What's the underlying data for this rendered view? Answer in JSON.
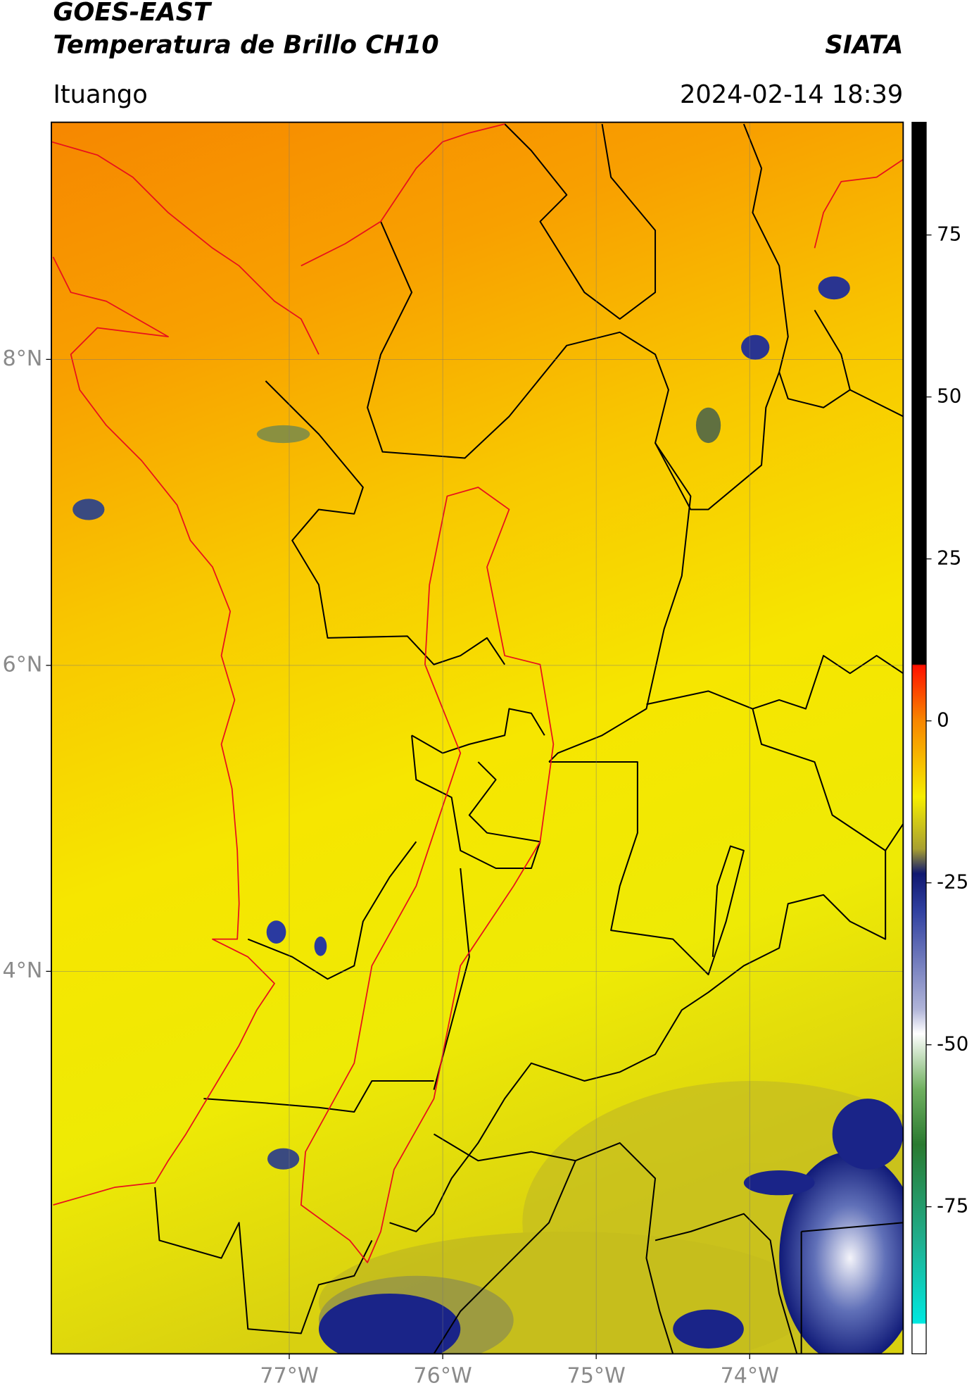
{
  "header": {
    "title": "GOES-EAST",
    "subtitle": "Temperatura de Brillo CH10",
    "credit": "SIATA",
    "location": "Ituango",
    "timestamp": "2024-02-14 18:39"
  },
  "map": {
    "xlim": [
      -78.55,
      -73.0
    ],
    "ylim": [
      1.5,
      9.55
    ],
    "xticks": [
      {
        "value": -77,
        "label": "77°W"
      },
      {
        "value": -76,
        "label": "76°W"
      },
      {
        "value": -75,
        "label": "75°W"
      },
      {
        "value": -74,
        "label": "74°W"
      }
    ],
    "yticks": [
      {
        "value": 8,
        "label": "8°N"
      },
      {
        "value": 6,
        "label": "6°N"
      },
      {
        "value": 4,
        "label": "4°N"
      }
    ],
    "grid": true
  },
  "colorbar": {
    "lim": [
      -97.7,
      92.4
    ],
    "ticks": [
      75,
      50,
      25,
      0,
      -25,
      -50,
      -75
    ]
  }
}
